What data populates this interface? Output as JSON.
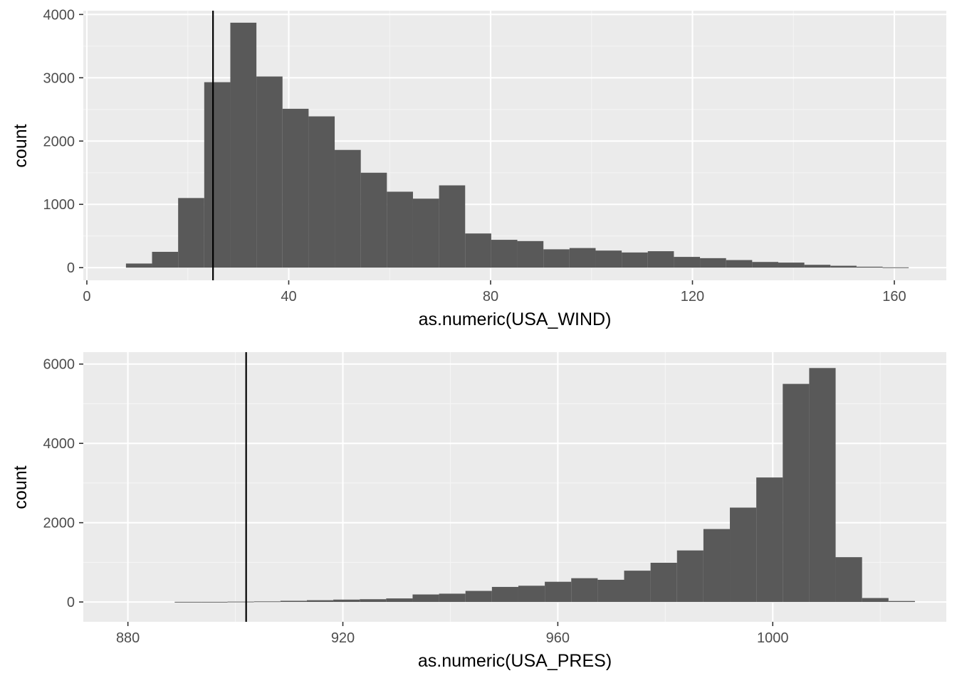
{
  "colors": {
    "panel_background": "#ebebeb",
    "grid_major": "#ffffff",
    "grid_minor": "#f5f5f5",
    "bar_fill": "#595959",
    "reference_line": "#000000",
    "tick_text": "#4d4d4d",
    "axis_title_text": "#000000"
  },
  "chart_data": [
    {
      "type": "bar",
      "subtype": "histogram",
      "xlabel": "as.numeric(USA_WIND)",
      "ylabel": "count",
      "xlim": [
        -0.7,
        170.3
      ],
      "ylim": [
        -200,
        4060
      ],
      "x_ticks": [
        0,
        40,
        80,
        120,
        160
      ],
      "x_tick_labels": [
        "0",
        "40",
        "80",
        "120",
        "160"
      ],
      "y_ticks": [
        0,
        1000,
        2000,
        3000,
        4000
      ],
      "y_tick_labels": [
        "0",
        "1000",
        "2000",
        "3000",
        "4000"
      ],
      "bin_width": 5.17,
      "bin_left_edges": [
        7.75,
        12.92,
        18.09,
        23.26,
        28.43,
        33.6,
        38.77,
        43.94,
        49.11,
        54.28,
        59.45,
        64.62,
        69.79,
        74.96,
        80.13,
        85.3,
        90.47,
        95.64,
        100.81,
        105.98,
        111.15,
        116.32,
        121.49,
        126.66,
        131.83,
        137.0,
        142.17,
        147.34,
        152.51,
        157.68
      ],
      "values": [
        65,
        250,
        1100,
        2930,
        3870,
        3020,
        2510,
        2390,
        1860,
        1500,
        1200,
        1090,
        1300,
        540,
        440,
        420,
        290,
        310,
        270,
        240,
        260,
        170,
        150,
        120,
        90,
        80,
        45,
        30,
        15,
        5
      ],
      "reference_line_x": 25,
      "grid": true
    },
    {
      "type": "bar",
      "subtype": "histogram",
      "xlabel": "as.numeric(USA_PRES)",
      "ylabel": "count",
      "xlim": [
        871.7,
        1032.3
      ],
      "ylim": [
        -500,
        6300
      ],
      "x_ticks": [
        880,
        920,
        960,
        1000
      ],
      "x_tick_labels": [
        "880",
        "920",
        "960",
        "1000"
      ],
      "y_ticks": [
        0,
        2000,
        4000,
        6000
      ],
      "y_tick_labels": [
        "0",
        "2000",
        "4000",
        "6000"
      ],
      "bin_width": 4.92,
      "bin_left_edges": [
        888.7,
        893.62,
        898.54,
        903.46,
        908.38,
        913.3,
        918.22,
        923.14,
        928.06,
        932.98,
        937.9,
        942.82,
        947.74,
        952.66,
        957.58,
        962.5,
        967.42,
        972.34,
        977.26,
        982.18,
        987.1,
        992.02,
        996.94,
        1001.86,
        1006.78,
        1011.7,
        1016.62,
        1021.54
      ],
      "values": [
        5,
        5,
        10,
        15,
        30,
        45,
        60,
        70,
        90,
        190,
        210,
        280,
        380,
        410,
        510,
        600,
        560,
        790,
        990,
        1300,
        1840,
        2380,
        3140,
        5500,
        5900,
        1130,
        100,
        25
      ],
      "reference_line_x": 902,
      "grid": true
    }
  ]
}
